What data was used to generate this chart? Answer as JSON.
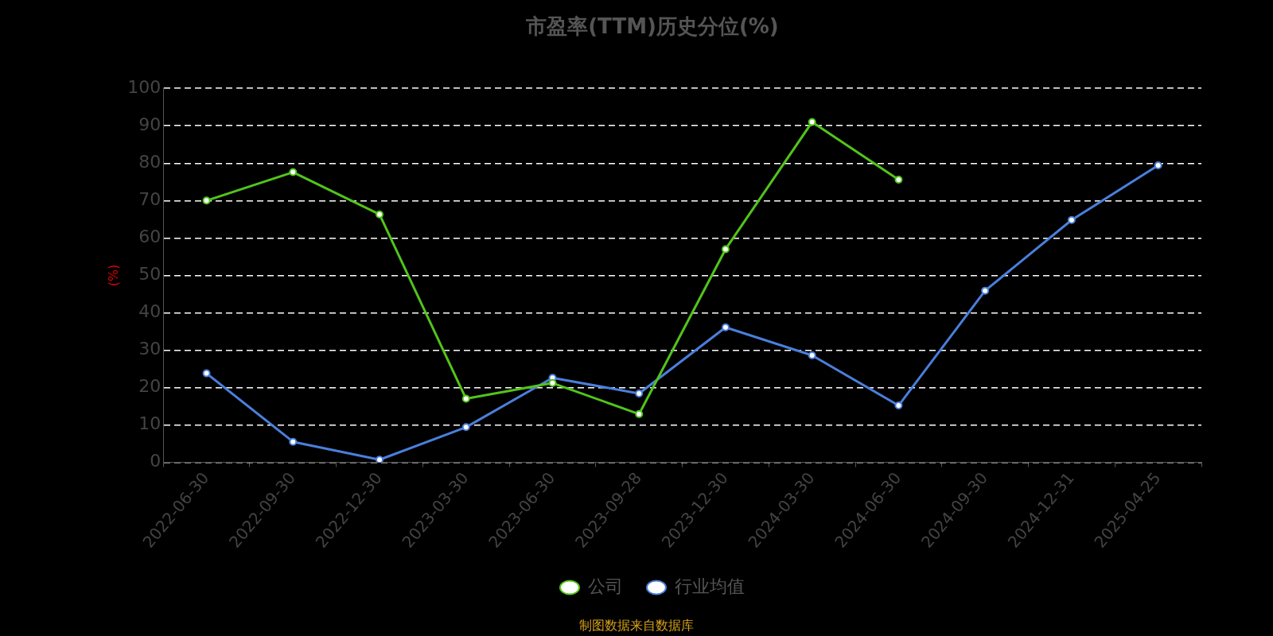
{
  "chart_data": {
    "type": "line",
    "title": "市盈率(TTM)历史分位(%)",
    "ylabel": "(%)",
    "categories": [
      "2022-06-30",
      "2022-09-30",
      "2022-12-30",
      "2023-03-30",
      "2023-06-30",
      "2023-09-28",
      "2023-12-30",
      "2024-03-30",
      "2024-06-30",
      "2024-09-30",
      "2024-12-31",
      "2025-04-25"
    ],
    "series": [
      {
        "name": "公司",
        "color": "#52c41a",
        "values": [
          70.0,
          77.6,
          66.3,
          17.0,
          21.2,
          12.9,
          57.0,
          91.0,
          75.6,
          null,
          null,
          null
        ]
      },
      {
        "name": "行业均值",
        "color": "#4a7fdc",
        "values": [
          23.8,
          5.5,
          0.7,
          9.4,
          22.6,
          18.4,
          36.1,
          28.6,
          15.2,
          45.9,
          64.8,
          79.4
        ]
      }
    ],
    "ylim": [
      0,
      100
    ],
    "yticks": [
      0,
      10,
      20,
      30,
      40,
      50,
      60,
      70,
      80,
      90,
      100
    ],
    "grid": "y",
    "legend": "bottom",
    "marker": "circle",
    "line_style": "solid",
    "annotations": [
      "制图数据来自数据库"
    ]
  }
}
